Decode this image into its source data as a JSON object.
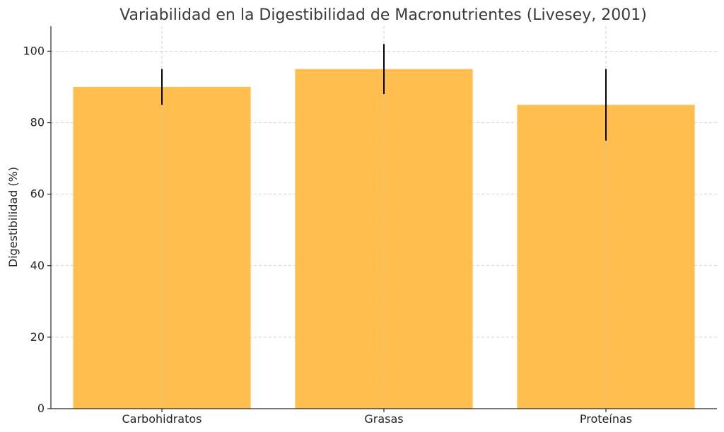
{
  "chart_data": {
    "type": "bar",
    "title": "Variabilidad en la Digestibilidad de Macronutrientes (Livesey, 2001)",
    "xlabel": "",
    "ylabel": "Digestibilidad (%)",
    "categories": [
      "Carbohidratos",
      "Grasas",
      "Proteínas"
    ],
    "values": [
      90,
      95,
      85
    ],
    "errors": [
      5,
      7,
      10
    ],
    "ylim": [
      0,
      107
    ],
    "yticks": [
      0,
      20,
      40,
      60,
      80,
      100
    ],
    "grid": true,
    "bar_color": "#ffbe4d",
    "error_color": "#000000"
  }
}
